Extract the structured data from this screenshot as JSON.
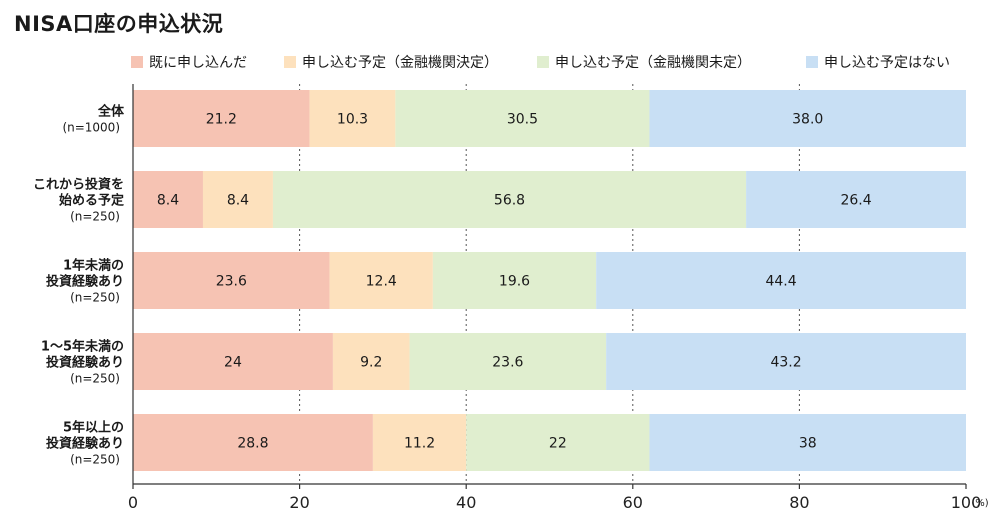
{
  "title": "NISA口座の申込状況",
  "chart_data": {
    "type": "bar",
    "orientation": "horizontal",
    "stacked": true,
    "xlim": [
      0,
      100
    ],
    "x_ticks": [
      "0",
      "20",
      "40",
      "60",
      "80",
      "100"
    ],
    "x_unit": "(%)",
    "grid": "vertical-dashed",
    "legend_position": "top",
    "categories": [
      {
        "lines": [
          "全体"
        ],
        "n": "(n=1000)"
      },
      {
        "lines": [
          "これから投資を",
          "始める予定"
        ],
        "n": "(n=250)"
      },
      {
        "lines": [
          "1年未満の",
          "投資経験あり"
        ],
        "n": "(n=250)"
      },
      {
        "lines": [
          "1〜5年未満の",
          "投資経験あり"
        ],
        "n": "(n=250)"
      },
      {
        "lines": [
          "5年以上の",
          "投資経験あり"
        ],
        "n": "(n=250)"
      }
    ],
    "series": [
      {
        "name": "既に申し込んだ",
        "color": "#f6c3b3",
        "values": [
          21.2,
          8.4,
          23.6,
          24,
          28.8
        ],
        "labels": [
          "21.2",
          "8.4",
          "23.6",
          "24",
          "28.8"
        ]
      },
      {
        "name": "申し込む予定（金融機関決定）",
        "color": "#fde1bd",
        "values": [
          10.3,
          8.4,
          12.4,
          9.2,
          11.2
        ],
        "labels": [
          "10.3",
          "8.4",
          "12.4",
          "9.2",
          "11.2"
        ]
      },
      {
        "name": "申し込む予定（金融機関未定）",
        "color": "#e0eecf",
        "values": [
          30.5,
          56.8,
          19.6,
          23.6,
          22
        ],
        "labels": [
          "30.5",
          "56.8",
          "19.6",
          "23.6",
          "22"
        ]
      },
      {
        "name": "申し込む予定はない",
        "color": "#c8dff4",
        "values": [
          38.0,
          26.4,
          44.4,
          43.2,
          38
        ],
        "labels": [
          "38.0",
          "26.4",
          "44.4",
          "43.2",
          "38"
        ]
      }
    ]
  }
}
